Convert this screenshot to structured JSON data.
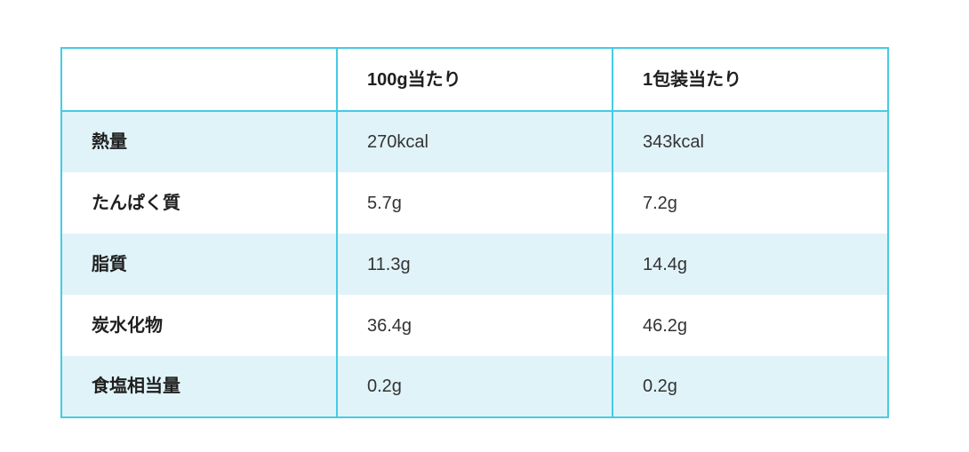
{
  "chart_data": {
    "type": "table",
    "title": "",
    "columns": [
      "",
      "100g当たり",
      "1包装当たり"
    ],
    "rows": [
      {
        "label": "熱量",
        "per_100g": "270kcal",
        "per_package": "343kcal"
      },
      {
        "label": "たんぱく質",
        "per_100g": "5.7g",
        "per_package": "7.2g"
      },
      {
        "label": "脂質",
        "per_100g": "11.3g",
        "per_package": "14.4g"
      },
      {
        "label": "炭水化物",
        "per_100g": "36.4g",
        "per_package": "46.2g"
      },
      {
        "label": "食塩相当量",
        "per_100g": "0.2g",
        "per_package": "0.2g"
      }
    ],
    "layout": {
      "striped": true,
      "stripe_rows": "odd",
      "grid": "outer+columns+header-underline"
    }
  },
  "colors": {
    "border": "#45cbe5",
    "row_alt": "#e0f3f9",
    "row_base": "#ffffff",
    "label_text": "#1f1f1f",
    "value_text": "#333333"
  }
}
